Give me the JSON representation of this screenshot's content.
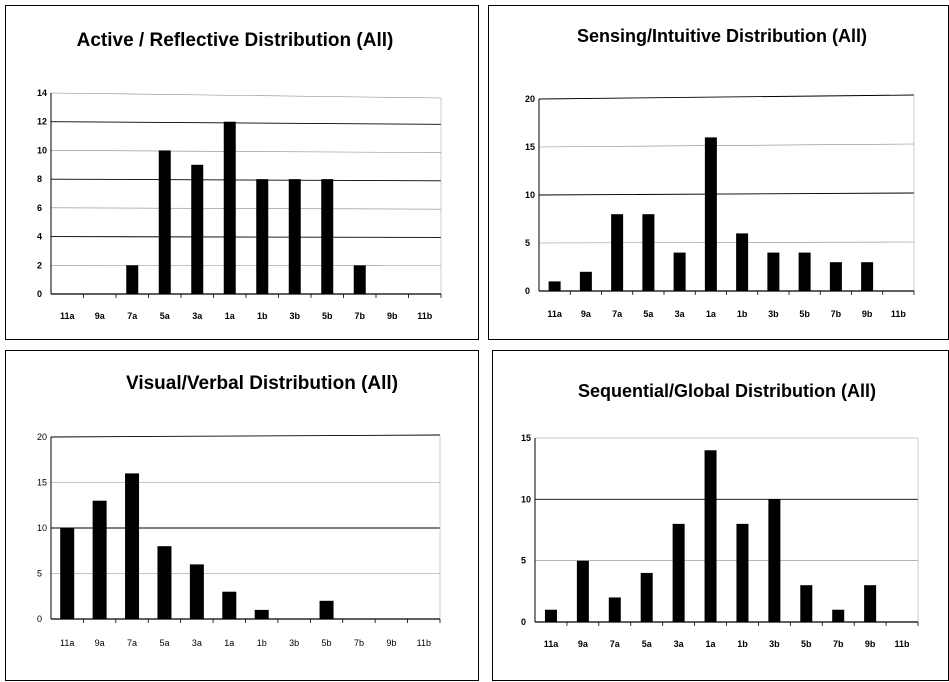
{
  "chart_data": [
    {
      "type": "bar",
      "title": "Active / Reflective Distribution (All)",
      "categories": [
        "11a",
        "9a",
        "7a",
        "5a",
        "3a",
        "1a",
        "1b",
        "3b",
        "5b",
        "7b",
        "9b",
        "11b"
      ],
      "values": [
        0,
        0,
        2,
        10,
        9,
        12,
        8,
        8,
        8,
        2,
        0,
        0
      ],
      "ylim": [
        0,
        14
      ],
      "yticks": [
        0,
        2,
        4,
        6,
        8,
        10,
        12,
        14
      ],
      "grid": true,
      "legend": "none"
    },
    {
      "type": "bar",
      "title": "Sensing/Intuitive Distribution (All)",
      "categories": [
        "11a",
        "9a",
        "7a",
        "5a",
        "3a",
        "1a",
        "1b",
        "3b",
        "5b",
        "7b",
        "9b",
        "11b"
      ],
      "values": [
        1,
        2,
        8,
        8,
        4,
        16,
        6,
        4,
        4,
        3,
        3,
        0
      ],
      "ylim": [
        0,
        20
      ],
      "yticks": [
        0,
        5,
        10,
        15,
        20
      ],
      "grid": true,
      "legend": "none"
    },
    {
      "type": "bar",
      "title": "Visual/Verbal Distribution (All)",
      "categories": [
        "11a",
        "9a",
        "7a",
        "5a",
        "3a",
        "1a",
        "1b",
        "3b",
        "5b",
        "7b",
        "9b",
        "11b"
      ],
      "values": [
        10,
        13,
        16,
        8,
        6,
        3,
        1,
        0,
        2,
        0,
        0,
        0
      ],
      "ylim": [
        0,
        20
      ],
      "yticks": [
        0,
        5,
        10,
        15,
        20
      ],
      "grid": true,
      "legend": "none"
    },
    {
      "type": "bar",
      "title": "Sequential/Global Distribution (All)",
      "categories": [
        "11a",
        "9a",
        "7a",
        "5a",
        "3a",
        "1a",
        "1b",
        "3b",
        "5b",
        "7b",
        "9b",
        "11b"
      ],
      "values": [
        1,
        5,
        2,
        4,
        8,
        14,
        8,
        10,
        3,
        1,
        3,
        0
      ],
      "ylim": [
        0,
        15
      ],
      "yticks": [
        0,
        5,
        10,
        15
      ],
      "grid": true,
      "legend": "none"
    }
  ]
}
